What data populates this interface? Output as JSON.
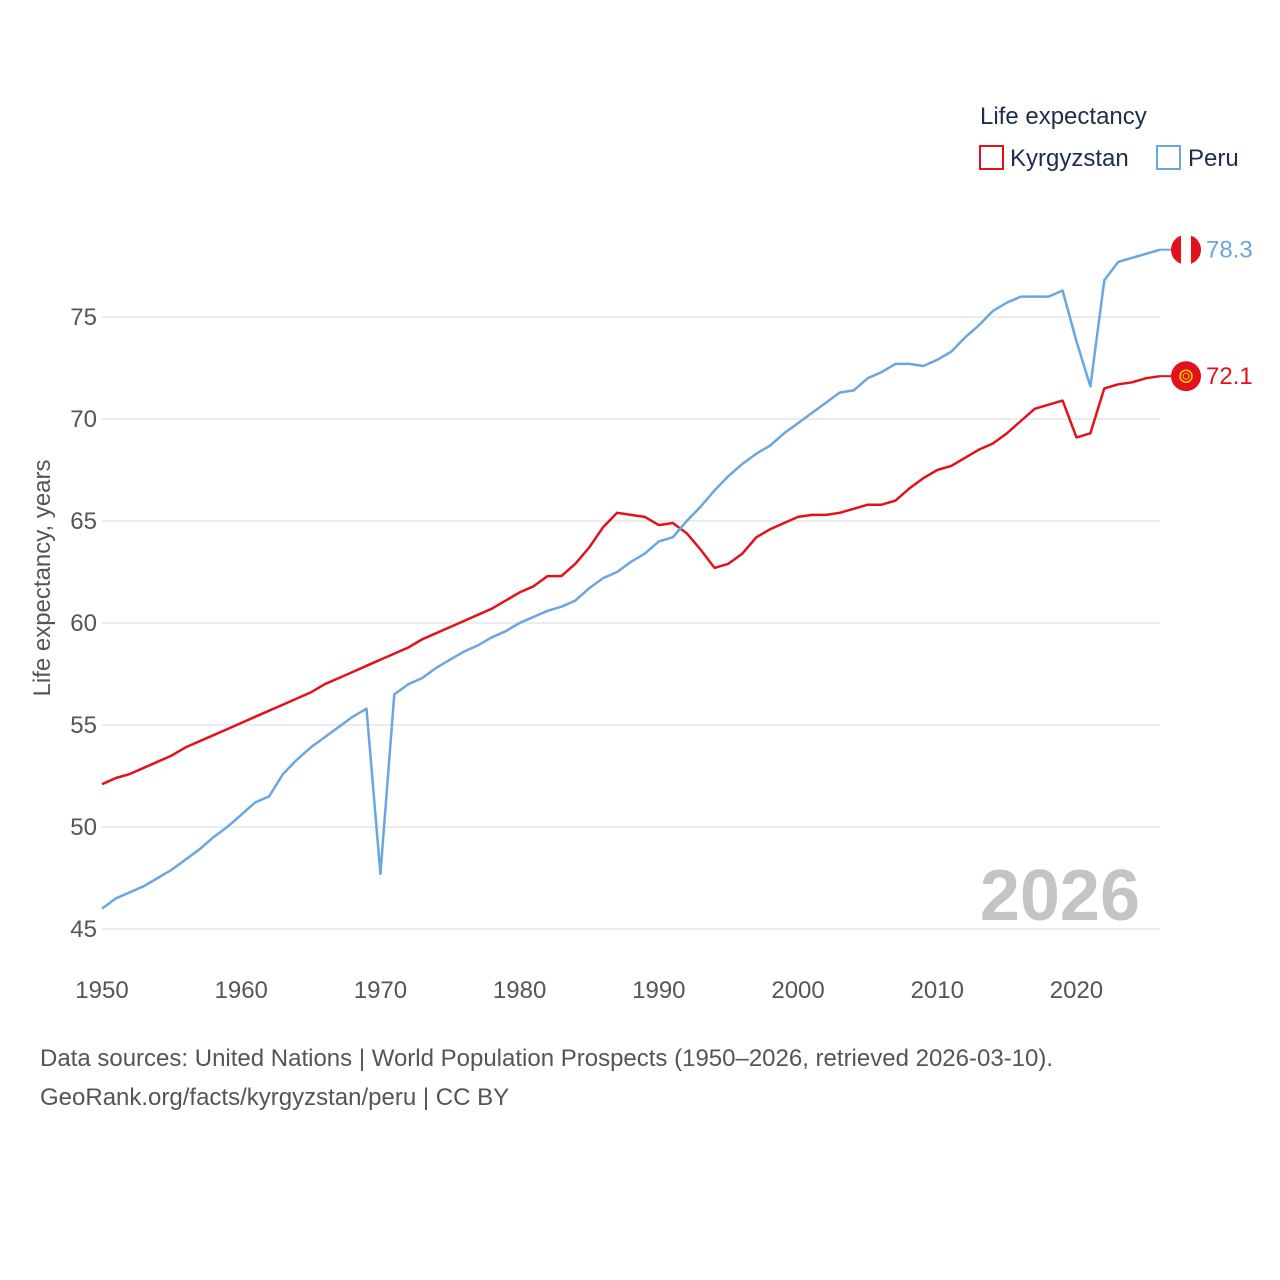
{
  "chart_data": {
    "type": "line",
    "legend_title": "Life expectancy",
    "ylabel": "Life expectancy, years",
    "xlabel": "",
    "year_watermark": "2026",
    "xlim": [
      1950,
      2026
    ],
    "ylim": [
      45,
      79
    ],
    "x_ticks": [
      1950,
      1960,
      1970,
      1980,
      1990,
      2000,
      2010,
      2020
    ],
    "y_ticks": [
      45,
      50,
      55,
      60,
      65,
      70,
      75
    ],
    "grid": true,
    "legend_position": "top-right",
    "series": [
      {
        "name": "Kyrgyzstan",
        "color": "#e3111b",
        "flag": "kyrgyzstan-flag-icon",
        "end_label": "72.1",
        "points": [
          [
            1950,
            52.1
          ],
          [
            1951,
            52.4
          ],
          [
            1952,
            52.6
          ],
          [
            1953,
            52.9
          ],
          [
            1954,
            53.2
          ],
          [
            1955,
            53.5
          ],
          [
            1956,
            53.9
          ],
          [
            1957,
            54.2
          ],
          [
            1958,
            54.5
          ],
          [
            1959,
            54.8
          ],
          [
            1960,
            55.1
          ],
          [
            1961,
            55.4
          ],
          [
            1962,
            55.7
          ],
          [
            1963,
            56.0
          ],
          [
            1964,
            56.3
          ],
          [
            1965,
            56.6
          ],
          [
            1966,
            57.0
          ],
          [
            1967,
            57.3
          ],
          [
            1968,
            57.6
          ],
          [
            1969,
            57.9
          ],
          [
            1970,
            58.2
          ],
          [
            1971,
            58.5
          ],
          [
            1972,
            58.8
          ],
          [
            1973,
            59.2
          ],
          [
            1974,
            59.5
          ],
          [
            1975,
            59.8
          ],
          [
            1976,
            60.1
          ],
          [
            1977,
            60.4
          ],
          [
            1978,
            60.7
          ],
          [
            1979,
            61.1
          ],
          [
            1980,
            61.5
          ],
          [
            1981,
            61.8
          ],
          [
            1982,
            62.3
          ],
          [
            1983,
            62.3
          ],
          [
            1984,
            62.9
          ],
          [
            1985,
            63.7
          ],
          [
            1986,
            64.7
          ],
          [
            1987,
            65.4
          ],
          [
            1988,
            65.3
          ],
          [
            1989,
            65.2
          ],
          [
            1990,
            64.8
          ],
          [
            1991,
            64.9
          ],
          [
            1992,
            64.4
          ],
          [
            1993,
            63.6
          ],
          [
            1994,
            62.7
          ],
          [
            1995,
            62.9
          ],
          [
            1996,
            63.4
          ],
          [
            1997,
            64.2
          ],
          [
            1998,
            64.6
          ],
          [
            1999,
            64.9
          ],
          [
            2000,
            65.2
          ],
          [
            2001,
            65.3
          ],
          [
            2002,
            65.3
          ],
          [
            2003,
            65.4
          ],
          [
            2004,
            65.6
          ],
          [
            2005,
            65.8
          ],
          [
            2006,
            65.8
          ],
          [
            2007,
            66.0
          ],
          [
            2008,
            66.6
          ],
          [
            2009,
            67.1
          ],
          [
            2010,
            67.5
          ],
          [
            2011,
            67.7
          ],
          [
            2012,
            68.1
          ],
          [
            2013,
            68.5
          ],
          [
            2014,
            68.8
          ],
          [
            2015,
            69.3
          ],
          [
            2016,
            69.9
          ],
          [
            2017,
            70.5
          ],
          [
            2018,
            70.7
          ],
          [
            2019,
            70.9
          ],
          [
            2020,
            69.1
          ],
          [
            2021,
            69.3
          ],
          [
            2022,
            71.5
          ],
          [
            2023,
            71.7
          ],
          [
            2024,
            71.8
          ],
          [
            2025,
            72.0
          ],
          [
            2026,
            72.1
          ]
        ]
      },
      {
        "name": "Peru",
        "color": "#6aa6e0",
        "flag": "peru-flag-icon",
        "end_label": "78.3",
        "points": [
          [
            1950,
            46.0
          ],
          [
            1951,
            46.5
          ],
          [
            1952,
            46.8
          ],
          [
            1953,
            47.1
          ],
          [
            1954,
            47.5
          ],
          [
            1955,
            47.9
          ],
          [
            1956,
            48.4
          ],
          [
            1957,
            48.9
          ],
          [
            1958,
            49.5
          ],
          [
            1959,
            50.0
          ],
          [
            1960,
            50.6
          ],
          [
            1961,
            51.2
          ],
          [
            1962,
            51.5
          ],
          [
            1963,
            52.6
          ],
          [
            1964,
            53.3
          ],
          [
            1965,
            53.9
          ],
          [
            1966,
            54.4
          ],
          [
            1967,
            54.9
          ],
          [
            1968,
            55.4
          ],
          [
            1969,
            55.8
          ],
          [
            1970,
            47.7
          ],
          [
            1971,
            56.5
          ],
          [
            1972,
            57.0
          ],
          [
            1973,
            57.3
          ],
          [
            1974,
            57.8
          ],
          [
            1975,
            58.2
          ],
          [
            1976,
            58.6
          ],
          [
            1977,
            58.9
          ],
          [
            1978,
            59.3
          ],
          [
            1979,
            59.6
          ],
          [
            1980,
            60.0
          ],
          [
            1981,
            60.3
          ],
          [
            1982,
            60.6
          ],
          [
            1983,
            60.8
          ],
          [
            1984,
            61.1
          ],
          [
            1985,
            61.7
          ],
          [
            1986,
            62.2
          ],
          [
            1987,
            62.5
          ],
          [
            1988,
            63.0
          ],
          [
            1989,
            63.4
          ],
          [
            1990,
            64.0
          ],
          [
            1991,
            64.2
          ],
          [
            1992,
            65.0
          ],
          [
            1993,
            65.7
          ],
          [
            1994,
            66.5
          ],
          [
            1995,
            67.2
          ],
          [
            1996,
            67.8
          ],
          [
            1997,
            68.3
          ],
          [
            1998,
            68.7
          ],
          [
            1999,
            69.3
          ],
          [
            2000,
            69.8
          ],
          [
            2001,
            70.3
          ],
          [
            2002,
            70.8
          ],
          [
            2003,
            71.3
          ],
          [
            2004,
            71.4
          ],
          [
            2005,
            72.0
          ],
          [
            2006,
            72.3
          ],
          [
            2007,
            72.7
          ],
          [
            2008,
            72.7
          ],
          [
            2009,
            72.6
          ],
          [
            2010,
            72.9
          ],
          [
            2011,
            73.3
          ],
          [
            2012,
            74.0
          ],
          [
            2013,
            74.6
          ],
          [
            2014,
            75.3
          ],
          [
            2015,
            75.7
          ],
          [
            2016,
            76.0
          ],
          [
            2017,
            76.0
          ],
          [
            2018,
            76.0
          ],
          [
            2019,
            76.3
          ],
          [
            2020,
            73.8
          ],
          [
            2021,
            71.6
          ],
          [
            2022,
            76.8
          ],
          [
            2023,
            77.7
          ],
          [
            2024,
            77.9
          ],
          [
            2025,
            78.1
          ],
          [
            2026,
            78.3
          ]
        ]
      }
    ]
  },
  "footer": {
    "source_line": "Data sources: United Nations | World Population Prospects (1950–2026, retrieved 2026-03-10).",
    "license_line": "GeoRank.org/facts/kyrgyzstan/peru | CC BY"
  }
}
